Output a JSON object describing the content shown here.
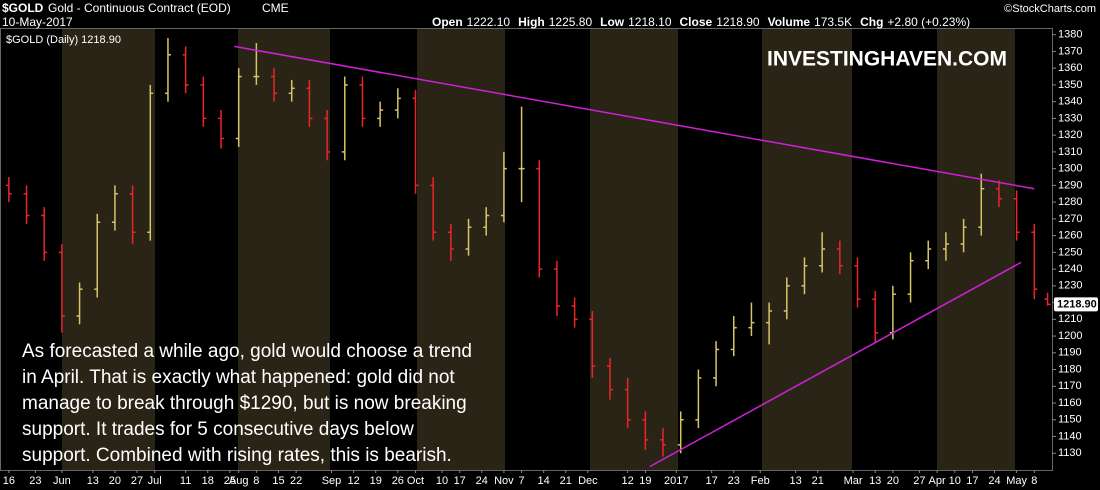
{
  "chart_data": {
    "type": "ohlc",
    "symbol": "$GOLD",
    "title": "Gold - Continuous Contract (EOD)",
    "exchange": "CME",
    "date": "10-May-2017",
    "quote": [
      {
        "label": "Open",
        "value": "1222.10"
      },
      {
        "label": "High",
        "value": "1225.80"
      },
      {
        "label": "Low",
        "value": "1218.10"
      },
      {
        "label": "Close",
        "value": "1218.90"
      },
      {
        "label": "Volume",
        "value": "173.5K"
      },
      {
        "label": "Chg",
        "value": "+2.80 (+0.23%)"
      }
    ],
    "credit": "©StockCharts.com",
    "legend": "$GOLD (Daily) 1218.90",
    "watermark": "INVESTINGHAVEN.COM",
    "annotation": [
      "As forecasted a while ago, gold would choose a trend",
      "in April. That is exactly what happened: gold did not",
      "manage to break through $1290, but is now breaking",
      "support. It trades for 5 consecutive days below",
      "support. Combined with rising rates, this is bearish."
    ],
    "last_label": "1218.90",
    "x": [
      0,
      4,
      8,
      12,
      16,
      20,
      24,
      28,
      32,
      36,
      40,
      44,
      48,
      52,
      56,
      60,
      64,
      68,
      72,
      76,
      80,
      84,
      88,
      92,
      96,
      100,
      104,
      108,
      112,
      116,
      120,
      124,
      128,
      132,
      136,
      140,
      144,
      148,
      152,
      156,
      160,
      164,
      168,
      172,
      176,
      180,
      184,
      188,
      192,
      196,
      200,
      204,
      208,
      212,
      216,
      220,
      224,
      228,
      232,
      235
    ],
    "open": [
      1290,
      1285,
      1272,
      1250,
      1212,
      1228,
      1268,
      1285,
      1262,
      1345,
      1368,
      1350,
      1330,
      1318,
      1355,
      1355,
      1345,
      1348,
      1330,
      1310,
      1350,
      1330,
      1335,
      1342,
      1290,
      1262,
      1252,
      1265,
      1272,
      1300,
      1300,
      1240,
      1218,
      1210,
      1182,
      1168,
      1150,
      1138,
      1135,
      1150,
      1175,
      1192,
      1205,
      1208,
      1215,
      1230,
      1242,
      1252,
      1242,
      1222,
      1202,
      1225,
      1245,
      1252,
      1255,
      1265,
      1288,
      1282,
      1262,
      1222.1
    ],
    "high": [
      1295,
      1290,
      1277,
      1255,
      1232,
      1273,
      1290,
      1290,
      1350,
      1378,
      1373,
      1355,
      1335,
      1360,
      1375,
      1360,
      1353,
      1353,
      1335,
      1355,
      1355,
      1340,
      1348,
      1347,
      1295,
      1267,
      1270,
      1277,
      1310,
      1337,
      1305,
      1245,
      1223,
      1215,
      1187,
      1175,
      1155,
      1145,
      1155,
      1180,
      1197,
      1212,
      1220,
      1220,
      1235,
      1247,
      1262,
      1257,
      1247,
      1227,
      1230,
      1250,
      1257,
      1262,
      1270,
      1297,
      1293,
      1287,
      1267,
      1225.8
    ],
    "low": [
      1280,
      1267,
      1245,
      1202,
      1207,
      1223,
      1263,
      1255,
      1257,
      1340,
      1345,
      1325,
      1312,
      1313,
      1350,
      1340,
      1340,
      1325,
      1305,
      1305,
      1325,
      1325,
      1330,
      1285,
      1257,
      1245,
      1248,
      1260,
      1268,
      1280,
      1235,
      1212,
      1205,
      1175,
      1162,
      1145,
      1132,
      1128,
      1130,
      1145,
      1170,
      1188,
      1200,
      1195,
      1210,
      1225,
      1238,
      1237,
      1217,
      1196,
      1198,
      1220,
      1240,
      1245,
      1250,
      1260,
      1277,
      1257,
      1222,
      1218.1
    ],
    "close": [
      1285,
      1272,
      1250,
      1212,
      1228,
      1268,
      1285,
      1262,
      1345,
      1368,
      1350,
      1330,
      1318,
      1355,
      1355,
      1345,
      1348,
      1330,
      1310,
      1350,
      1330,
      1335,
      1342,
      1290,
      1262,
      1252,
      1265,
      1272,
      1300,
      1300,
      1240,
      1218,
      1210,
      1182,
      1168,
      1150,
      1138,
      1135,
      1150,
      1175,
      1192,
      1205,
      1208,
      1215,
      1230,
      1242,
      1252,
      1242,
      1222,
      1202,
      1225,
      1245,
      1252,
      1255,
      1265,
      1288,
      1282,
      1262,
      1228,
      1218.9
    ],
    "up_color": "#d8c468",
    "down_color": "#e8262a",
    "trendline_color": "#d020d8",
    "trendlines": [
      {
        "x": [
          51,
          232
        ],
        "y": [
          1373,
          1288
        ]
      },
      {
        "x": [
          145,
          229
        ],
        "y": [
          1122,
          1244
        ]
      }
    ],
    "xlim": [
      -2,
      236
    ],
    "ylim": [
      1120,
      1384
    ],
    "yticks": [
      1130,
      1140,
      1150,
      1160,
      1170,
      1180,
      1190,
      1200,
      1210,
      1220,
      1230,
      1240,
      1250,
      1260,
      1270,
      1280,
      1290,
      1300,
      1310,
      1320,
      1330,
      1340,
      1350,
      1360,
      1370,
      1380
    ],
    "xticks": [
      {
        "value": 0,
        "label": "16"
      },
      {
        "value": 6,
        "label": "23"
      },
      {
        "value": 12,
        "label": "Jun"
      },
      {
        "value": 19,
        "label": "13"
      },
      {
        "value": 24,
        "label": "20"
      },
      {
        "value": 29,
        "label": "27"
      },
      {
        "value": 33,
        "label": "Jul"
      },
      {
        "value": 40,
        "label": "11"
      },
      {
        "value": 45,
        "label": "18"
      },
      {
        "value": 50,
        "label": "25"
      },
      {
        "value": 52,
        "label": "Aug"
      },
      {
        "value": 56,
        "label": "8"
      },
      {
        "value": 61,
        "label": "15"
      },
      {
        "value": 65,
        "label": "22"
      },
      {
        "value": 73,
        "label": "Sep"
      },
      {
        "value": 78,
        "label": "12"
      },
      {
        "value": 83,
        "label": "19"
      },
      {
        "value": 88,
        "label": "26"
      },
      {
        "value": 92,
        "label": "Oct"
      },
      {
        "value": 98,
        "label": "10"
      },
      {
        "value": 102,
        "label": "17"
      },
      {
        "value": 107,
        "label": "24"
      },
      {
        "value": 112,
        "label": "Nov"
      },
      {
        "value": 116,
        "label": "7"
      },
      {
        "value": 121,
        "label": "14"
      },
      {
        "value": 126,
        "label": "21"
      },
      {
        "value": 131,
        "label": "Dec"
      },
      {
        "value": 140,
        "label": "12"
      },
      {
        "value": 144,
        "label": "19"
      },
      {
        "value": 151,
        "label": "2017"
      },
      {
        "value": 159,
        "label": "17"
      },
      {
        "value": 164,
        "label": "23"
      },
      {
        "value": 170,
        "label": "Feb"
      },
      {
        "value": 178,
        "label": "13"
      },
      {
        "value": 183,
        "label": "21"
      },
      {
        "value": 191,
        "label": "Mar"
      },
      {
        "value": 196,
        "label": "13"
      },
      {
        "value": 200,
        "label": "20"
      },
      {
        "value": 206,
        "label": "27"
      },
      {
        "value": 210,
        "label": "Apr"
      },
      {
        "value": 214,
        "label": "10"
      },
      {
        "value": 218,
        "label": "17"
      },
      {
        "value": 223,
        "label": "24"
      },
      {
        "value": 228,
        "label": "May"
      },
      {
        "value": 232,
        "label": "8"
      }
    ]
  }
}
